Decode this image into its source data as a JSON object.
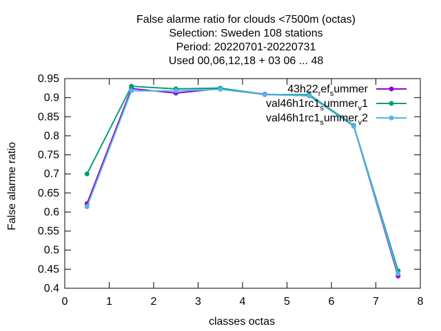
{
  "chart_data": {
    "type": "line",
    "title_lines": [
      "False alarme ratio  for clouds <7500m (octas)",
      "Selection: Sweden    108 stations",
      "Period: 20220701-20220731",
      "Used  00,06,12,18  + 03 06 ... 48"
    ],
    "xlabel": "classes octas",
    "ylabel": "False alarme ratio",
    "xlim": [
      0,
      8
    ],
    "ylim": [
      0.4,
      0.95
    ],
    "xticks": [
      0,
      1,
      2,
      3,
      4,
      5,
      6,
      7,
      8
    ],
    "yticks": [
      0.4,
      0.45,
      0.5,
      0.55,
      0.6,
      0.65,
      0.7,
      0.75,
      0.8,
      0.85,
      0.9,
      0.95
    ],
    "grid": false,
    "legend_position": "top-right",
    "x": [
      0.5,
      1.5,
      2.5,
      3.5,
      4.5,
      5.5,
      6.5,
      7.5
    ],
    "series": [
      {
        "name": "43h22_ref_summer",
        "legend": {
          "pre": "43h22",
          "sub1": "r",
          "mid": "ef",
          "sub2": "s",
          "post": "ummer"
        },
        "color": "#9400d3",
        "values": [
          0.622,
          0.924,
          0.912,
          0.924,
          0.909,
          0.905,
          0.826,
          0.432
        ]
      },
      {
        "name": "val46h1rc1_summer_v1",
        "legend": {
          "pre": "val46h1rc1",
          "sub1": "s",
          "mid": "ummer",
          "sub2": "v",
          "post": "1"
        },
        "color": "#009e73",
        "values": [
          0.7,
          0.93,
          0.923,
          0.925,
          0.908,
          0.908,
          0.827,
          0.446
        ]
      },
      {
        "name": "val46h1rc1_summer_v2",
        "legend": {
          "pre": "val46h1rc1",
          "sub1": "s",
          "mid": "ummer",
          "sub2": "v",
          "post": "2"
        },
        "color": "#56b4e9",
        "values": [
          0.614,
          0.918,
          0.918,
          0.922,
          0.908,
          0.905,
          0.825,
          0.438
        ]
      }
    ]
  }
}
